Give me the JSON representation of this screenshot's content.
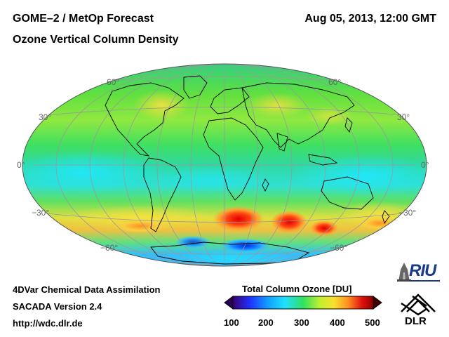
{
  "header": {
    "title_left": "GOME–2 / MetOp Forecast",
    "title_right": "Aug 05, 2013, 12:00 GMT",
    "subtitle": "Ozone Vertical Column Density"
  },
  "map": {
    "projection": "Hammer-Aitoff",
    "lat_labels": [
      "60°",
      "30°",
      "0°",
      "−30°",
      "−60°"
    ],
    "colors": {
      "low": "#2a0050",
      "blue": "#1050ff",
      "cyan": "#20e0ff",
      "green": "#30e060",
      "yellow": "#f0f040",
      "orange": "#ff9020",
      "red": "#e01010",
      "high": "#400000"
    }
  },
  "colorbar": {
    "title": "Total Column Ozone [DU]",
    "ticks": [
      "100",
      "200",
      "300",
      "400",
      "500"
    ]
  },
  "footer": {
    "line1": "4DVar Chemical Data Assimilation",
    "line2": "SACADA Version 2.4",
    "line3": "http://wdc.dlr.de"
  },
  "logos": {
    "riu": "RIU",
    "dlr": "DLR"
  }
}
